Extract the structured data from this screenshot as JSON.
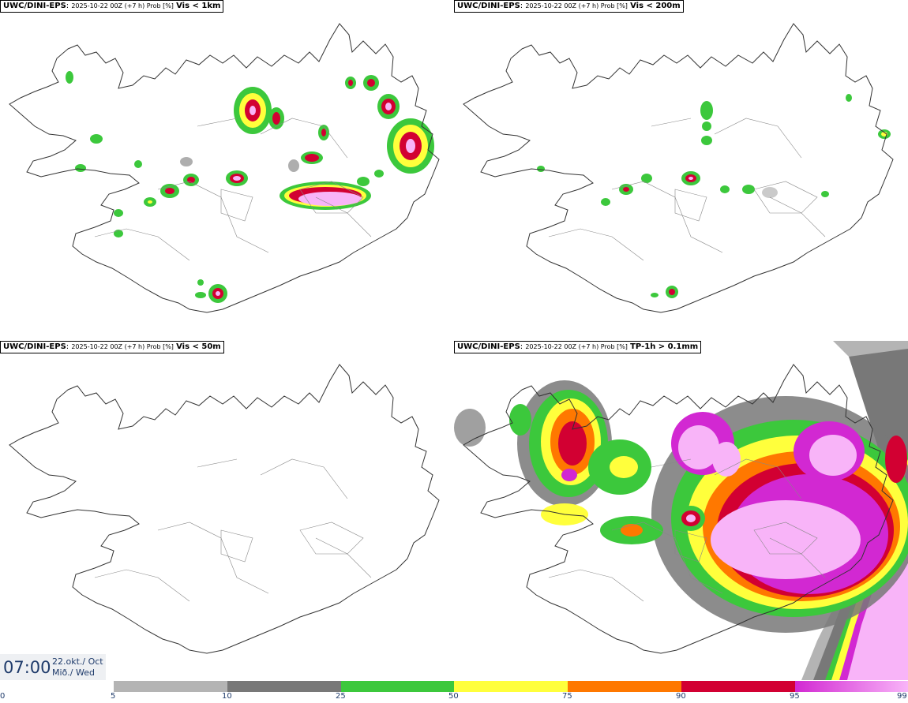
{
  "panels": [
    {
      "model": "UWC/DINI-EPS",
      "run": "2025-10-22 00Z (+7 h) Prob [%]",
      "field": "Vis < 1km"
    },
    {
      "model": "UWC/DINI-EPS",
      "run": "2025-10-22 00Z (+7 h) Prob [%]",
      "field": "Vis < 200m"
    },
    {
      "model": "UWC/DINI-EPS",
      "run": "2025-10-22 00Z (+7 h) Prob [%]",
      "field": "Vis < 50m"
    },
    {
      "model": "UWC/DINI-EPS",
      "run": "2025-10-22 00Z (+7 h) Prob [%]",
      "field": "TP-1h > 0.1mm"
    }
  ],
  "time": {
    "clock": "07:00",
    "date_line": "22.okt./ Oct",
    "day_line": "Mið./ Wed"
  },
  "colorscale": {
    "ticks": [
      "0",
      "5",
      "10",
      "25",
      "50",
      "75",
      "90",
      "95",
      "99"
    ],
    "colors": {
      "p5": "#b4b4b4",
      "p10": "#787878",
      "p25": "#3cc83c",
      "p50": "#ffff3c",
      "p75": "#ff7800",
      "p90": "#d20032",
      "p95": "#d228d2",
      "p99": "#f8b4f8"
    }
  },
  "map": {
    "coast_color": "#333333"
  }
}
